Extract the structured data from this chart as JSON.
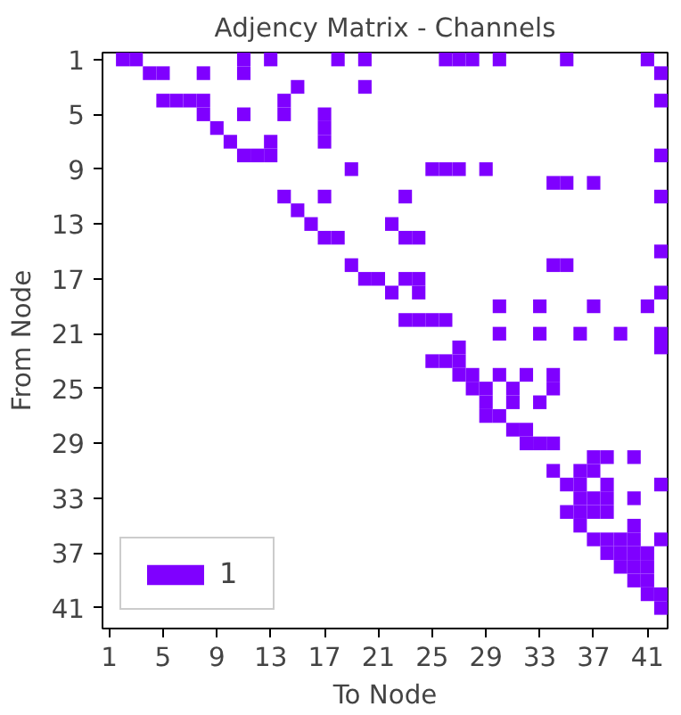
{
  "chart_data": {
    "type": "scatter",
    "title": "Adjency Matrix - Channels",
    "xlabel": "To Node",
    "ylabel": "From Node",
    "marker": "square",
    "legend": "bottom left",
    "grid": false,
    "xlim": [
      0.5,
      42.5
    ],
    "ylim": [
      42.5,
      0.5
    ],
    "xticks": [
      1,
      5,
      9,
      13,
      17,
      21,
      25,
      29,
      33,
      37,
      41
    ],
    "yticks": [
      1,
      5,
      9,
      13,
      17,
      21,
      25,
      29,
      33,
      37,
      41
    ],
    "series": [
      {
        "name": "1",
        "color": "#7f00ff",
        "x": [
          2,
          3,
          11,
          13,
          18,
          20,
          26,
          27,
          28,
          30,
          35,
          41,
          4,
          5,
          8,
          11,
          42,
          15,
          20,
          5,
          6,
          7,
          8,
          14,
          42,
          8,
          11,
          14,
          17,
          9,
          17,
          10,
          13,
          17,
          11,
          12,
          13,
          42,
          19,
          25,
          26,
          27,
          29,
          34,
          35,
          37,
          14,
          17,
          23,
          42,
          15,
          16,
          22,
          17,
          18,
          23,
          24,
          42,
          19,
          34,
          35,
          20,
          21,
          23,
          24,
          22,
          24,
          42,
          30,
          33,
          37,
          41,
          23,
          24,
          25,
          26,
          30,
          33,
          36,
          39,
          42,
          27,
          42,
          25,
          26,
          27,
          27,
          28,
          30,
          32,
          34,
          28,
          29,
          31,
          34,
          29,
          31,
          33,
          29,
          30,
          31,
          32,
          32,
          33,
          34,
          37,
          38,
          40,
          34,
          36,
          37,
          35,
          36,
          38,
          42,
          36,
          37,
          38,
          40,
          35,
          36,
          37,
          38,
          36,
          40,
          37,
          38,
          39,
          40,
          42,
          38,
          39,
          40,
          41,
          39,
          40,
          41,
          40,
          41,
          41,
          42,
          42
        ],
        "values": [
          1,
          1,
          1,
          1,
          1,
          1,
          1,
          1,
          1,
          1,
          1,
          1,
          2,
          2,
          2,
          2,
          2,
          3,
          3,
          4,
          4,
          4,
          4,
          4,
          4,
          5,
          5,
          5,
          5,
          6,
          6,
          7,
          7,
          7,
          8,
          8,
          8,
          8,
          9,
          9,
          9,
          9,
          9,
          10,
          10,
          10,
          11,
          11,
          11,
          11,
          12,
          13,
          13,
          14,
          14,
          14,
          14,
          15,
          16,
          16,
          16,
          17,
          17,
          17,
          17,
          18,
          18,
          18,
          19,
          19,
          19,
          19,
          20,
          20,
          20,
          20,
          21,
          21,
          21,
          21,
          21,
          22,
          22,
          23,
          23,
          23,
          24,
          24,
          24,
          24,
          24,
          25,
          25,
          25,
          25,
          26,
          26,
          26,
          27,
          27,
          28,
          28,
          29,
          29,
          29,
          30,
          30,
          30,
          31,
          31,
          31,
          32,
          32,
          32,
          32,
          33,
          33,
          33,
          33,
          34,
          34,
          34,
          34,
          35,
          35,
          36,
          36,
          36,
          36,
          36,
          37,
          37,
          37,
          37,
          38,
          38,
          38,
          39,
          39,
          40,
          40,
          41
        ]
      }
    ]
  }
}
